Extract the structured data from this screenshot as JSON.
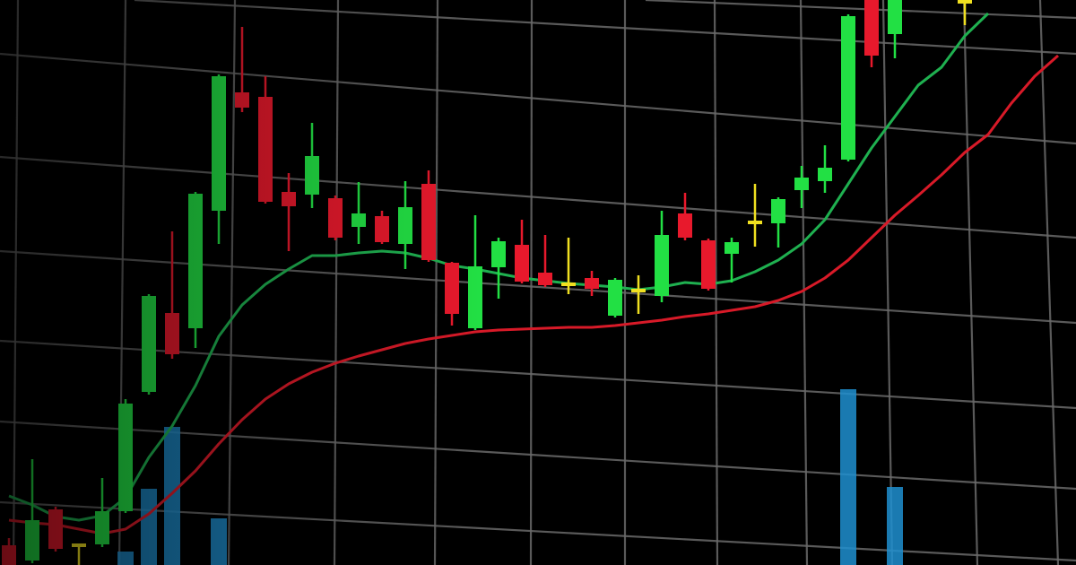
{
  "chart_data": {
    "type": "candlestick",
    "ylim": [
      0,
      630
    ],
    "up_color": "#22e044",
    "down_color": "#e8192c",
    "flat_color": "#f0e020",
    "volume_color": "#1f8fd0",
    "open": [
      22,
      5,
      62,
      22,
      23,
      60,
      193,
      281,
      264,
      395,
      527,
      522,
      416,
      413,
      409,
      377,
      389,
      358,
      425,
      337,
      264,
      332,
      357,
      326,
      313,
      320,
      278,
      306,
      300,
      392,
      362,
      347,
      382,
      381,
      418,
      428,
      452,
      630,
      592,
      null,
      null,
      628,
      null,
      null,
      null,
      null
    ],
    "high": [
      30,
      118,
      65,
      24,
      97,
      185,
      302,
      372,
      416,
      547,
      600,
      545,
      437,
      493,
      412,
      427,
      395,
      428,
      440,
      338,
      390,
      365,
      385,
      368,
      365,
      328,
      320,
      323,
      395,
      415,
      364,
      365,
      425,
      410,
      445,
      468,
      614,
      630,
      630,
      null,
      null,
      630,
      null,
      null,
      null,
      null
    ],
    "low": [
      0,
      2,
      15,
      0,
      20,
      58,
      190,
      230,
      242,
      358,
      505,
      403,
      350,
      398,
      362,
      358,
      358,
      330,
      338,
      267,
      262,
      297,
      314,
      310,
      302,
      300,
      276,
      280,
      293,
      362,
      306,
      315,
      355,
      354,
      398,
      415,
      450,
      555,
      565,
      null,
      null,
      602,
      null,
      null,
      null,
      null
    ],
    "close": [
      0,
      50,
      18,
      22,
      60,
      180,
      300,
      235,
      414,
      545,
      510,
      405,
      400,
      456,
      365,
      392,
      360,
      399,
      340,
      280,
      333,
      361,
      316,
      312,
      313,
      308,
      318,
      306,
      368,
      365,
      308,
      360,
      382,
      408,
      432,
      443,
      612,
      568,
      630,
      null,
      null,
      628,
      null,
      null,
      null,
      null
    ],
    "volume": [
      null,
      null,
      null,
      null,
      null,
      15,
      85,
      154,
      null,
      52,
      null,
      null,
      null,
      null,
      null,
      null,
      null,
      null,
      null,
      null,
      null,
      null,
      null,
      null,
      null,
      null,
      null,
      null,
      null,
      null,
      null,
      null,
      null,
      null,
      null,
      null,
      196,
      null,
      87,
      null,
      null,
      null,
      null,
      null,
      null,
      null
    ],
    "lines": [
      {
        "color": "#1fb050",
        "values": [
          77,
          67,
          54,
          50,
          55,
          75,
          120,
          155,
          200,
          255,
          290,
          313,
          330,
          345,
          345,
          348,
          350,
          348,
          342,
          334,
          330,
          325,
          320,
          317,
          314,
          312,
          310,
          307,
          310,
          315,
          313,
          317,
          327,
          340,
          358,
          385,
          425,
          465,
          500,
          535,
          555,
          590,
          615,
          null,
          null,
          null
        ]
      },
      {
        "color": "#d81a28",
        "values": [
          50,
          47,
          45,
          40,
          35,
          40,
          57,
          80,
          105,
          135,
          162,
          185,
          202,
          215,
          225,
          233,
          240,
          247,
          252,
          256,
          260,
          262,
          263,
          264,
          265,
          265,
          267,
          270,
          273,
          277,
          280,
          284,
          288,
          295,
          305,
          320,
          340,
          365,
          390,
          412,
          435,
          460,
          480,
          515,
          545,
          568
        ]
      }
    ]
  }
}
